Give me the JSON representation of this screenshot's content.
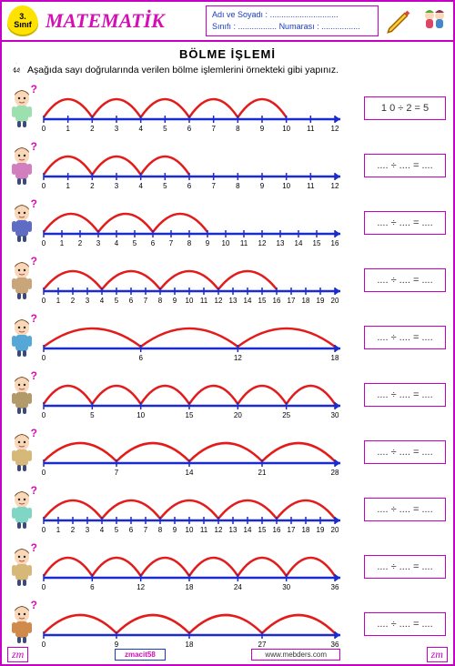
{
  "header": {
    "grade_top": "3.",
    "grade_bottom": "Sınıf",
    "subject": "MATEMATİK",
    "name_label": "Adı ve Soyadı :",
    "name_dots": "..............................",
    "class_label": "Sınıfı :",
    "class_dots": ".................",
    "number_label": "Numarası :",
    "number_dots": "................."
  },
  "section_title": "BÖLME  İŞLEMİ",
  "star_number": "44",
  "instruction": "Aşağıda  sayı doğrularında verilen bölme işlemlerini örnekteki gibi yapınız.",
  "blank_answer": ".... ÷ .... = ....",
  "colors": {
    "line": "#1a2bcf",
    "arc": "#e31b1b",
    "border": "#c400c4"
  },
  "rows": [
    {
      "max": 12,
      "step": 1,
      "jump": 2,
      "end": 10,
      "answer": "1 0 ÷ 2 = 5",
      "shirt": "#9de0b0"
    },
    {
      "max": 12,
      "step": 1,
      "jump": 2,
      "end": 6,
      "answer": "",
      "shirt": "#d17fbf"
    },
    {
      "max": 16,
      "step": 1,
      "jump": 3,
      "end": 9,
      "answer": "",
      "shirt": "#5f6cc4"
    },
    {
      "max": 20,
      "step": 1,
      "jump": 4,
      "end": 16,
      "answer": "",
      "shirt": "#c9a57a"
    },
    {
      "max": 18,
      "step": 6,
      "jump": 6,
      "end": 18,
      "labels_explicit": [
        0,
        6,
        12,
        18
      ],
      "answer": "",
      "shirt": "#55a8d6"
    },
    {
      "max": 30,
      "step": 5,
      "jump": 5,
      "end": 30,
      "labels_explicit": [
        0,
        5,
        10,
        15,
        20,
        25,
        30
      ],
      "answer": "",
      "shirt": "#b39a6b"
    },
    {
      "max": 28,
      "step": 7,
      "jump": 7,
      "end": 28,
      "labels_explicit": [
        0,
        7,
        14,
        21,
        28
      ],
      "answer": "",
      "shirt": "#d6b879"
    },
    {
      "max": 20,
      "step": 1,
      "jump": 4,
      "end": 20,
      "answer": "",
      "shirt": "#7fd6c4"
    },
    {
      "max": 36,
      "step": 6,
      "jump": 6,
      "end": 36,
      "labels_explicit": [
        0,
        6,
        12,
        18,
        24,
        30,
        36
      ],
      "answer": "",
      "shirt": "#d6b879"
    },
    {
      "max": 36,
      "step": 9,
      "jump": 9,
      "end": 36,
      "labels_explicit": [
        0,
        9,
        18,
        27,
        36
      ],
      "answer": "",
      "shirt": "#cf8a4c"
    }
  ],
  "footer": {
    "zm": "zm",
    "author": "zmacit58",
    "website": "www.mebders.com"
  }
}
